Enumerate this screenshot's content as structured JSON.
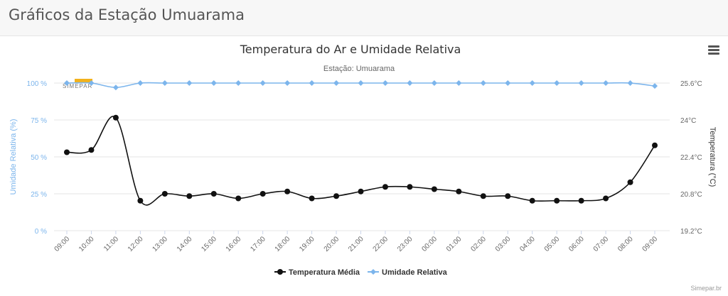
{
  "page": {
    "title": "Gráficos da Estação Umuarama"
  },
  "credit": "Simepar.br",
  "watermark": "SIMEPAR",
  "menu_icon": "hamburger-menu-icon",
  "colors": {
    "temperature": "#111111",
    "humidity": "#7cb5ec",
    "grid": "#e6e6e6",
    "axis_text": "#666666"
  },
  "chart_data": {
    "type": "line",
    "title": "Temperatura do Ar e Umidade Relativa",
    "subtitle": "Estação: Umuarama",
    "categories": [
      "09:00",
      "10:00",
      "11:00",
      "12:00",
      "13:00",
      "14:00",
      "15:00",
      "16:00",
      "17:00",
      "18:00",
      "19:00",
      "20:00",
      "21:00",
      "22:00",
      "23:00",
      "00:00",
      "01:00",
      "02:00",
      "03:00",
      "04:00",
      "05:00",
      "06:00",
      "07:00",
      "08:00",
      "09:00"
    ],
    "y_left": {
      "label": "Umidade Relativa (%)",
      "range": [
        0,
        100
      ],
      "ticks": [
        "0 %",
        "25 %",
        "50 %",
        "75 %",
        "100 %"
      ]
    },
    "y_right": {
      "label": "Temperatura (°C)",
      "range": [
        19.2,
        25.6
      ],
      "ticks": [
        "19.2°C",
        "20.8°C",
        "22.4°C",
        "24°C",
        "25.6°C"
      ]
    },
    "series": [
      {
        "name": "Temperatura Média",
        "axis": "right",
        "values": [
          22.6,
          22.7,
          24.1,
          20.5,
          20.8,
          20.7,
          20.8,
          20.6,
          20.8,
          20.9,
          20.6,
          20.7,
          20.9,
          21.1,
          21.1,
          21.0,
          20.9,
          20.7,
          20.7,
          20.5,
          20.5,
          20.5,
          20.6,
          21.3,
          22.9
        ]
      },
      {
        "name": "Umidade Relativa",
        "axis": "left",
        "values": [
          100,
          100,
          97,
          100,
          100,
          100,
          100,
          100,
          100,
          100,
          100,
          100,
          100,
          100,
          100,
          100,
          100,
          100,
          100,
          100,
          100,
          100,
          100,
          100,
          98
        ]
      }
    ],
    "legend": [
      "Temperatura Média",
      "Umidade Relativa"
    ]
  }
}
